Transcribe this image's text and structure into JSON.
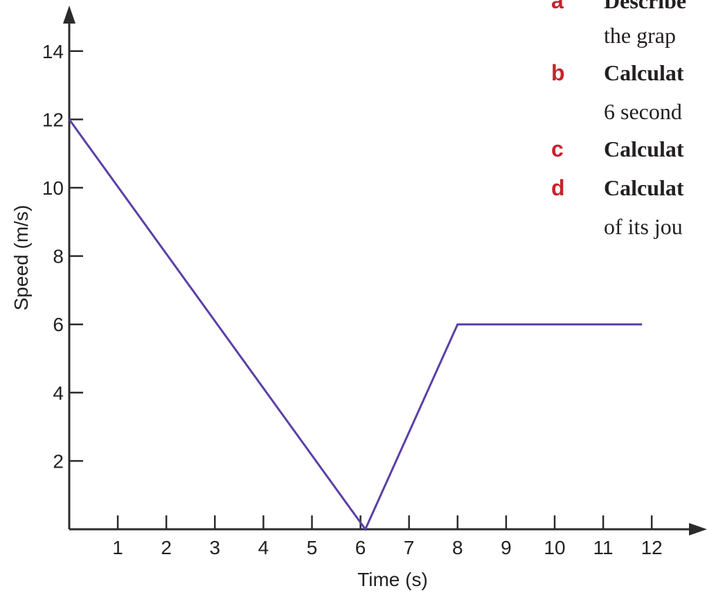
{
  "chart_data": {
    "type": "line",
    "xlabel": "Time (s)",
    "ylabel": "Speed (m/s)",
    "xlim": [
      0,
      12.5
    ],
    "ylim": [
      0,
      14.8
    ],
    "x_ticks": [
      1,
      2,
      3,
      4,
      5,
      6,
      7,
      8,
      9,
      10,
      11,
      12
    ],
    "y_ticks": [
      2,
      4,
      6,
      8,
      10,
      12,
      14
    ],
    "grid": false,
    "line_color": "#5b3fa6",
    "series": [
      {
        "x": [
          0,
          6.1,
          8,
          11.8
        ],
        "y": [
          12,
          0,
          6,
          6
        ]
      }
    ]
  },
  "questions": [
    {
      "letter": "a",
      "lines": [
        "Describe",
        "the grap"
      ]
    },
    {
      "letter": "b",
      "lines": [
        "Calculat",
        "6 second"
      ]
    },
    {
      "letter": "c",
      "lines": [
        "Calculat"
      ]
    },
    {
      "letter": "d",
      "lines": [
        "Calculat",
        "of its jou"
      ]
    }
  ],
  "colors": {
    "axis": "#2b2b2b",
    "question_letter": "#c8232c",
    "question_text": "#231f20"
  }
}
